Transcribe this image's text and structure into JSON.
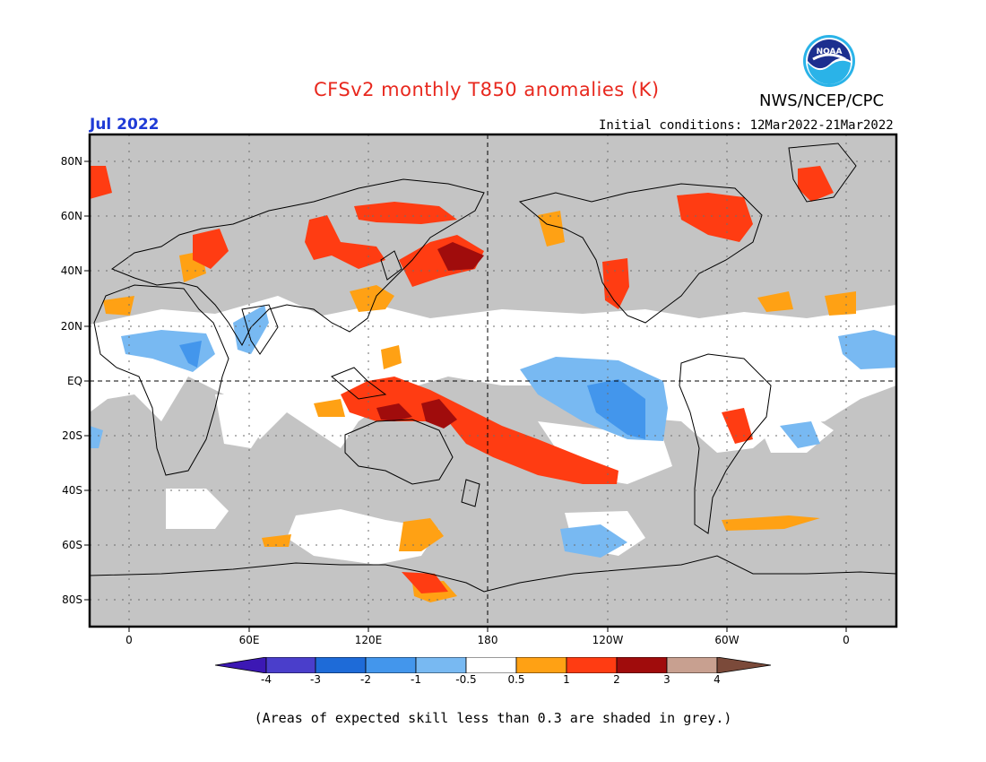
{
  "header": {
    "title": "CFSv2 monthly T850 anomalies (K)",
    "org": "NWS/NCEP/CPC",
    "month": "Jul 2022",
    "initial_conditions": "Initial conditions: 12Mar2022-21Mar2022",
    "logo_text": "NOAA"
  },
  "map": {
    "lat_labels": [
      "80N",
      "60N",
      "40N",
      "20N",
      "EQ",
      "20S",
      "40S",
      "60S",
      "80S"
    ],
    "lon_labels": [
      "0",
      "60E",
      "120E",
      "180",
      "120W",
      "60W",
      "0"
    ],
    "colors": {
      "grey": "#c4c4c4",
      "white": "#ffffff",
      "b1": "#78b9f2",
      "b2": "#4396ec",
      "b3": "#1e6bd8",
      "b4": "#3f3ecb",
      "o1": "#ffa114",
      "o2": "#ff3c12",
      "o3": "#a00c0c",
      "o4": "#c8a090"
    }
  },
  "colorbar": {
    "ticks": [
      "-4",
      "-3",
      "-2",
      "-1",
      "-0.5",
      "0.5",
      "1",
      "2",
      "3",
      "4"
    ],
    "colors": [
      "#3c18b4",
      "#4a3ecb",
      "#1e6bd8",
      "#4396ec",
      "#78b9f2",
      "#ffffff",
      "#ffa114",
      "#ff3c12",
      "#a00c0c",
      "#c8a090",
      "#7b4a3a"
    ]
  },
  "footnote": "(Areas of expected skill less than 0.3 are shaded in grey.)"
}
